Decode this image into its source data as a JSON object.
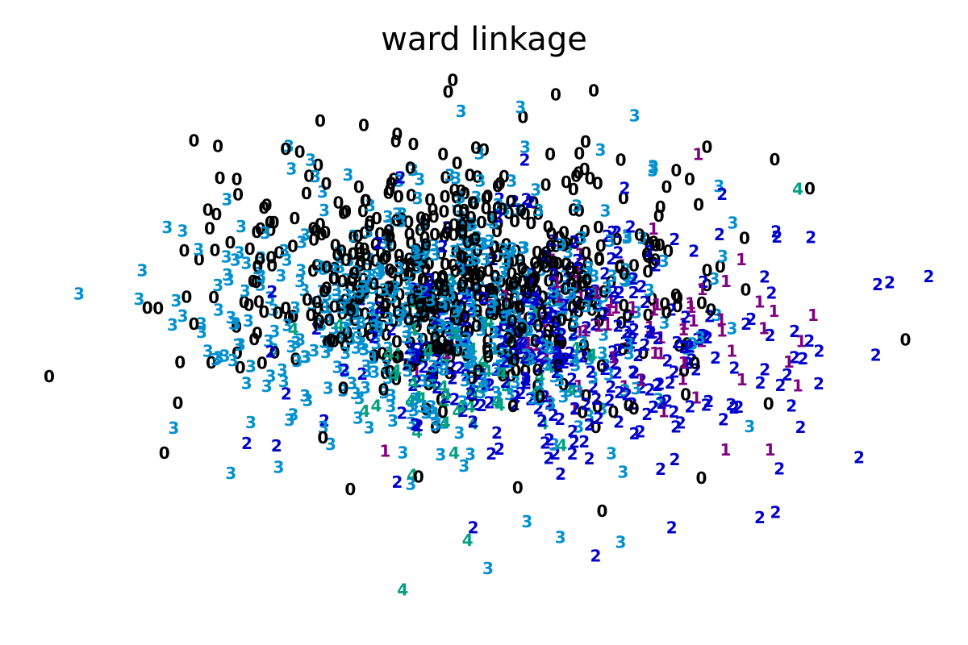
{
  "chart_data": {
    "type": "scatter",
    "title": "ward linkage",
    "xlabel": "",
    "ylabel": "",
    "axes_visible": false,
    "grid": false,
    "marker_style": "cluster digit text labels",
    "x_range": [
      0,
      1
    ],
    "y_range": [
      0,
      1
    ],
    "clusters": [
      {
        "label": "0",
        "color": "#000000"
      },
      {
        "label": "1",
        "color": "#800080"
      },
      {
        "label": "2",
        "color": "#0000cc"
      },
      {
        "label": "3",
        "color": "#0090d0"
      },
      {
        "label": "4",
        "color": "#00a080"
      }
    ],
    "outlier_points": [
      {
        "label": "0",
        "x": 0.027,
        "y": 0.433
      },
      {
        "label": "0",
        "x": 0.151,
        "y": 0.297
      },
      {
        "label": "0",
        "x": 0.168,
        "y": 0.458
      },
      {
        "label": "0",
        "x": 0.183,
        "y": 0.526
      },
      {
        "label": "0",
        "x": 0.183,
        "y": 0.851
      },
      {
        "label": "0",
        "x": 0.211,
        "y": 0.784
      },
      {
        "label": "0",
        "x": 0.254,
        "y": 0.641
      },
      {
        "label": "0",
        "x": 0.366,
        "y": 0.878
      },
      {
        "label": "0",
        "x": 0.402,
        "y": 0.862
      },
      {
        "label": "0",
        "x": 0.457,
        "y": 0.937
      },
      {
        "label": "0",
        "x": 0.462,
        "y": 0.958
      },
      {
        "label": "0",
        "x": 0.573,
        "y": 0.932
      },
      {
        "label": "0",
        "x": 0.614,
        "y": 0.939
      },
      {
        "label": "0",
        "x": 0.736,
        "y": 0.839
      },
      {
        "label": "0",
        "x": 0.809,
        "y": 0.817
      },
      {
        "label": "0",
        "x": 0.847,
        "y": 0.766
      },
      {
        "label": "0",
        "x": 0.95,
        "y": 0.498
      },
      {
        "label": "0",
        "x": 0.425,
        "y": 0.255
      },
      {
        "label": "0",
        "x": 0.532,
        "y": 0.236
      },
      {
        "label": "0",
        "x": 0.623,
        "y": 0.194
      },
      {
        "label": "0",
        "x": 0.73,
        "y": 0.253
      },
      {
        "label": "1",
        "x": 0.804,
        "y": 0.303
      },
      {
        "label": "1",
        "x": 0.756,
        "y": 0.303
      },
      {
        "label": "1",
        "x": 0.389,
        "y": 0.301
      },
      {
        "label": "2",
        "x": 0.24,
        "y": 0.314
      },
      {
        "label": "2",
        "x": 0.272,
        "y": 0.31
      },
      {
        "label": "2",
        "x": 0.402,
        "y": 0.246
      },
      {
        "label": "2",
        "x": 0.484,
        "y": 0.165
      },
      {
        "label": "2",
        "x": 0.616,
        "y": 0.115
      },
      {
        "label": "2",
        "x": 0.698,
        "y": 0.165
      },
      {
        "label": "2",
        "x": 0.793,
        "y": 0.183
      },
      {
        "label": "2",
        "x": 0.81,
        "y": 0.192
      },
      {
        "label": "2",
        "x": 0.837,
        "y": 0.343
      },
      {
        "label": "2",
        "x": 0.857,
        "y": 0.478
      },
      {
        "label": "2",
        "x": 0.918,
        "y": 0.471
      },
      {
        "label": "2",
        "x": 0.92,
        "y": 0.596
      },
      {
        "label": "2",
        "x": 0.933,
        "y": 0.599
      },
      {
        "label": "2",
        "x": 0.975,
        "y": 0.61
      },
      {
        "label": "2",
        "x": 0.848,
        "y": 0.679
      },
      {
        "label": "3",
        "x": 0.188,
        "y": 0.658
      },
      {
        "label": "3",
        "x": 0.218,
        "y": 0.645
      },
      {
        "label": "3",
        "x": 0.314,
        "y": 0.787
      },
      {
        "label": "3",
        "x": 0.471,
        "y": 0.903
      },
      {
        "label": "3",
        "x": 0.535,
        "y": 0.91
      },
      {
        "label": "3",
        "x": 0.658,
        "y": 0.895
      },
      {
        "label": "3",
        "x": 0.678,
        "y": 0.805
      },
      {
        "label": "3",
        "x": 0.5,
        "y": 0.093
      },
      {
        "label": "3",
        "x": 0.578,
        "y": 0.148
      },
      {
        "label": "3",
        "x": 0.643,
        "y": 0.139
      },
      {
        "label": "3",
        "x": 0.542,
        "y": 0.176
      },
      {
        "label": "4",
        "x": 0.408,
        "y": 0.055
      },
      {
        "label": "4",
        "x": 0.478,
        "y": 0.143
      },
      {
        "label": "4",
        "x": 0.834,
        "y": 0.765
      }
    ],
    "core_cluster_points": [
      {
        "label": "0",
        "count": 620,
        "center": [
          0.472,
          0.596
        ],
        "spread": [
          0.128,
          0.104
        ]
      },
      {
        "label": "1",
        "count": 70,
        "center": [
          0.655,
          0.526
        ],
        "spread": [
          0.088,
          0.078
        ]
      },
      {
        "label": "2",
        "count": 300,
        "center": [
          0.587,
          0.493
        ],
        "spread": [
          0.115,
          0.098
        ]
      },
      {
        "label": "3",
        "count": 480,
        "center": [
          0.437,
          0.54
        ],
        "spread": [
          0.125,
          0.108
        ]
      },
      {
        "label": "4",
        "count": 60,
        "center": [
          0.47,
          0.437
        ],
        "spread": [
          0.082,
          0.066
        ]
      }
    ]
  }
}
